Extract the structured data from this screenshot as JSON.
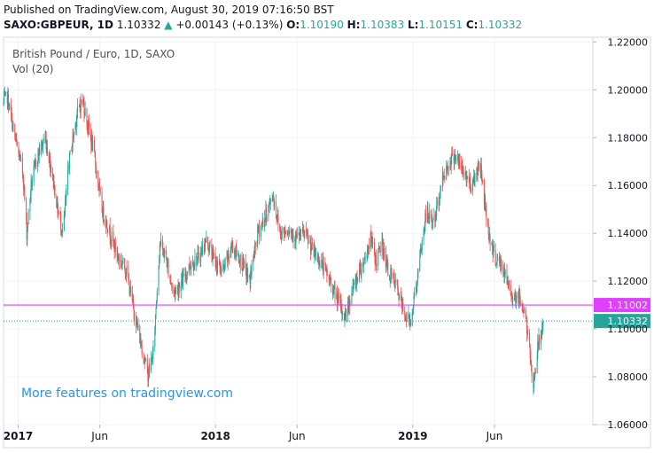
{
  "header": {
    "published": "Published on TradingView.com, August 30, 2019 07:16:50 BST",
    "symbol": "SAXO:GBPEUR, 1D",
    "last": "1.10332",
    "change_arrow": "▲",
    "change": "+0.00143 (+0.13%)",
    "o_label": "O:",
    "o_value": "1.10190",
    "h_label": "H:",
    "h_value": "1.10383",
    "l_label": "L:",
    "l_value": "1.10151",
    "c_label": "C:",
    "c_value": "1.10332"
  },
  "legend": {
    "title": "British Pound / Euro, 1D, SAXO",
    "volume": "Vol (20)"
  },
  "promo": "More features on tradingview.com",
  "colors": {
    "up": "#26a69a",
    "down": "#ef5350",
    "magenta_line": "#e040fb",
    "last_price": "#26a69a",
    "grid": "#f0f3fa",
    "axis_text": "#131722"
  },
  "chart_data": {
    "type": "candlestick",
    "ylim": [
      1.06,
      1.222
    ],
    "y_ticks": [
      "1.22000",
      "1.20000",
      "1.18000",
      "1.16000",
      "1.14000",
      "1.12000",
      "1.10000",
      "1.08000",
      "1.06000"
    ],
    "y_tick_values": [
      1.22,
      1.2,
      1.18,
      1.16,
      1.14,
      1.12,
      1.1,
      1.08,
      1.06
    ],
    "x_labels": [
      "2017",
      "Jun",
      "2018",
      "Jun",
      "2019",
      "Jun"
    ],
    "x_label_dates": [
      "2017-01-01",
      "2017-06-01",
      "2018-01-01",
      "2018-06-01",
      "2019-01-01",
      "2019-06-01"
    ],
    "x_range": [
      "2016-12-05",
      "2019-11-30"
    ],
    "horizontal_line": {
      "value": 1.11002,
      "label": "1.11002"
    },
    "last_price": {
      "value": 1.10332,
      "label": "1.10332"
    },
    "close_path": [
      [
        "2016-12-05",
        1.195
      ],
      [
        "2016-12-12",
        1.197
      ],
      [
        "2016-12-26",
        1.18
      ],
      [
        "2017-01-10",
        1.165
      ],
      [
        "2017-01-17",
        1.14
      ],
      [
        "2017-01-25",
        1.16
      ],
      [
        "2017-02-05",
        1.172
      ],
      [
        "2017-02-20",
        1.18
      ],
      [
        "2017-03-05",
        1.165
      ],
      [
        "2017-03-15",
        1.15
      ],
      [
        "2017-03-25",
        1.14
      ],
      [
        "2017-04-05",
        1.17
      ],
      [
        "2017-04-20",
        1.19
      ],
      [
        "2017-04-30",
        1.196
      ],
      [
        "2017-05-10",
        1.185
      ],
      [
        "2017-05-20",
        1.175
      ],
      [
        "2017-06-05",
        1.15
      ],
      [
        "2017-06-20",
        1.14
      ],
      [
        "2017-07-05",
        1.13
      ],
      [
        "2017-07-20",
        1.125
      ],
      [
        "2017-08-01",
        1.11
      ],
      [
        "2017-08-15",
        1.095
      ],
      [
        "2017-08-29",
        1.081
      ],
      [
        "2017-09-08",
        1.09
      ],
      [
        "2017-09-20",
        1.136
      ],
      [
        "2017-10-01",
        1.13
      ],
      [
        "2017-10-15",
        1.115
      ],
      [
        "2017-11-01",
        1.12
      ],
      [
        "2017-11-15",
        1.127
      ],
      [
        "2017-12-01",
        1.13
      ],
      [
        "2017-12-15",
        1.137
      ],
      [
        "2018-01-01",
        1.128
      ],
      [
        "2018-01-15",
        1.124
      ],
      [
        "2018-02-01",
        1.135
      ],
      [
        "2018-02-20",
        1.127
      ],
      [
        "2018-03-05",
        1.12
      ],
      [
        "2018-03-20",
        1.14
      ],
      [
        "2018-04-05",
        1.148
      ],
      [
        "2018-04-17",
        1.156
      ],
      [
        "2018-05-01",
        1.14
      ],
      [
        "2018-05-15",
        1.142
      ],
      [
        "2018-06-01",
        1.138
      ],
      [
        "2018-06-15",
        1.14
      ],
      [
        "2018-07-01",
        1.132
      ],
      [
        "2018-07-15",
        1.128
      ],
      [
        "2018-08-01",
        1.12
      ],
      [
        "2018-08-15",
        1.112
      ],
      [
        "2018-08-28",
        1.105
      ],
      [
        "2018-09-10",
        1.115
      ],
      [
        "2018-09-20",
        1.122
      ],
      [
        "2018-10-05",
        1.13
      ],
      [
        "2018-10-15",
        1.138
      ],
      [
        "2018-10-25",
        1.128
      ],
      [
        "2018-11-05",
        1.136
      ],
      [
        "2018-11-15",
        1.125
      ],
      [
        "2018-12-01",
        1.118
      ],
      [
        "2018-12-15",
        1.107
      ],
      [
        "2018-12-27",
        1.103
      ],
      [
        "2019-01-10",
        1.122
      ],
      [
        "2019-01-25",
        1.148
      ],
      [
        "2019-02-10",
        1.145
      ],
      [
        "2019-02-25",
        1.163
      ],
      [
        "2019-03-10",
        1.17
      ],
      [
        "2019-03-20",
        1.173
      ],
      [
        "2019-04-01",
        1.167
      ],
      [
        "2019-04-20",
        1.16
      ],
      [
        "2019-05-05",
        1.17
      ],
      [
        "2019-05-20",
        1.142
      ],
      [
        "2019-06-01",
        1.13
      ],
      [
        "2019-06-15",
        1.126
      ],
      [
        "2019-07-01",
        1.115
      ],
      [
        "2019-07-15",
        1.113
      ],
      [
        "2019-07-27",
        1.108
      ],
      [
        "2019-08-05",
        1.09
      ],
      [
        "2019-08-12",
        1.077
      ],
      [
        "2019-08-20",
        1.092
      ],
      [
        "2019-08-30",
        1.10332
      ]
    ]
  }
}
